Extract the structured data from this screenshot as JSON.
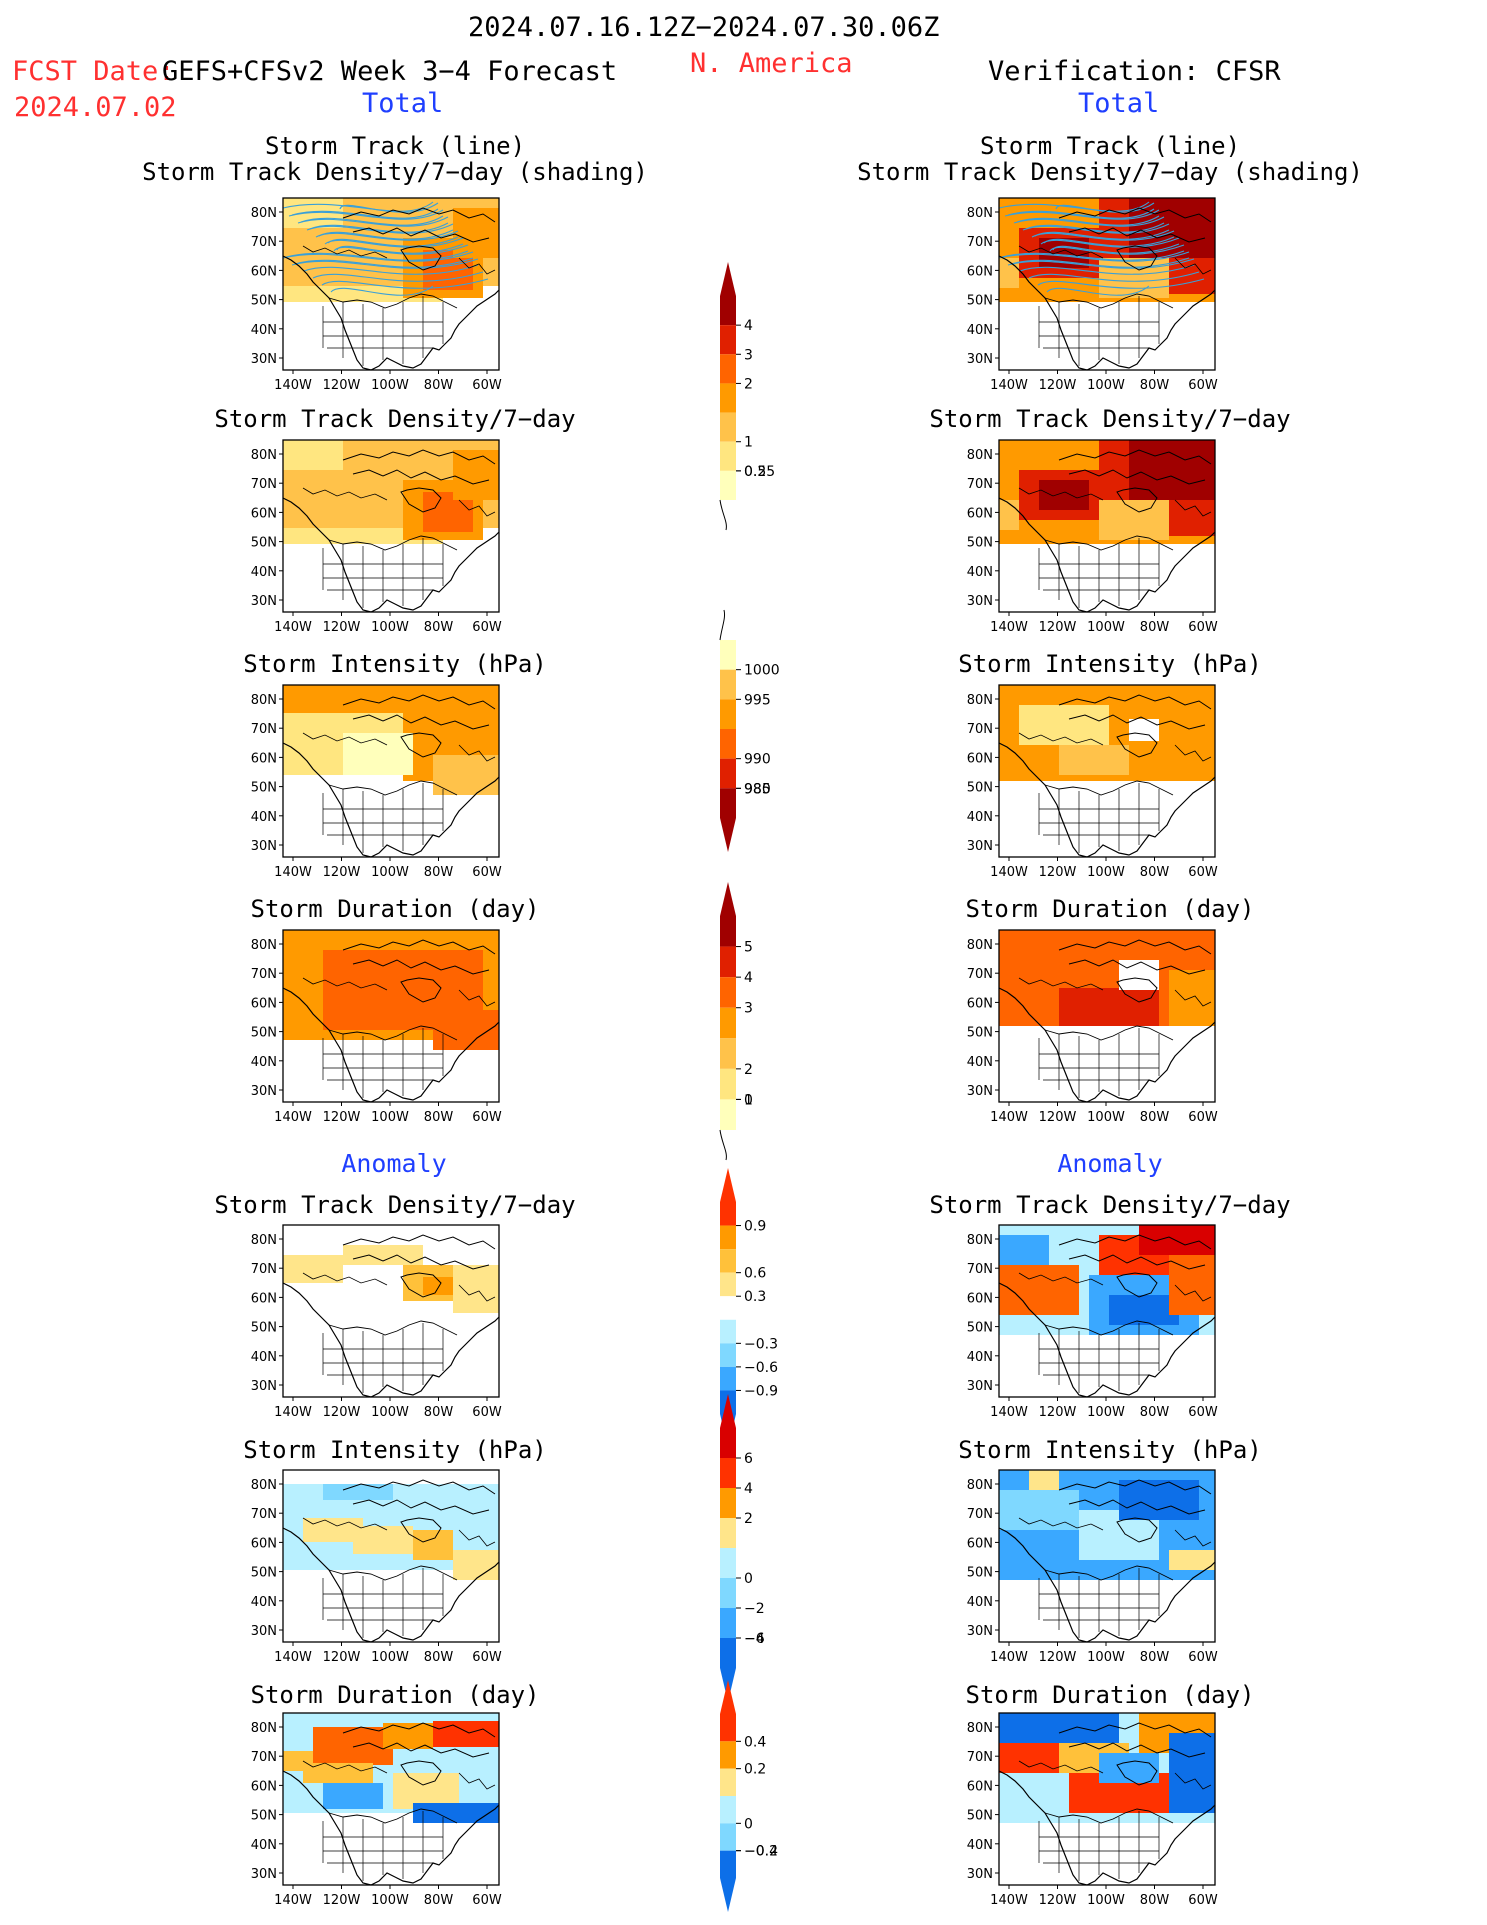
{
  "header": {
    "period": "2024.07.16.12Z−2024.07.30.06Z",
    "fcst_label": "FCST Date:",
    "model": "GEFS+CFSv2 Week 3−4 Forecast",
    "fcst_date": "2024.07.02",
    "region": "N. America",
    "verification": "Verification: CFSR",
    "left_total": "Total",
    "right_total": "Total",
    "left_anomaly": "Anomaly",
    "right_anomaly": "Anomaly"
  },
  "colors": {
    "header_red": "#ff3030",
    "label_blue": "#1f3fff",
    "track_line": "#3aa0d8",
    "white": "#ffffff",
    "pos": [
      "#ffe58a",
      "#ffc13a",
      "#ff9a00",
      "#ff6400",
      "#ff3200",
      "#d90000",
      "#a00000"
    ],
    "neg": [
      "#b8f0ff",
      "#7fd8ff",
      "#3aa8ff",
      "#0d6fe8",
      "#0040c0"
    ],
    "total": [
      "#ffffbb",
      "#ffe680",
      "#ffc24a",
      "#ff9a00",
      "#ff6400",
      "#e02000",
      "#a00000"
    ]
  },
  "axes": {
    "lon_ticks": [
      "140W",
      "120W",
      "100W",
      "80W",
      "60W"
    ],
    "lat_ticks": [
      "80N",
      "70N",
      "60N",
      "50N",
      "40N",
      "30N"
    ]
  },
  "panels": {
    "left": [
      {
        "title1": "Storm Track (line)",
        "title2": "Storm Track Density/7−day (shading)"
      },
      {
        "title1": "Storm Track Density/7−day"
      },
      {
        "title1": "Storm Intensity (hPa)"
      },
      {
        "title1": "Storm Duration (day)"
      },
      {
        "title1": "Storm Track Density/7−day"
      },
      {
        "title1": "Storm Intensity (hPa)"
      },
      {
        "title1": "Storm Duration (day)"
      }
    ],
    "right": [
      {
        "title1": "Storm Track (line)",
        "title2": "Storm Track Density/7−day (shading)"
      },
      {
        "title1": "Storm Track Density/7−day"
      },
      {
        "title1": "Storm Intensity (hPa)"
      },
      {
        "title1": "Storm Duration (day)"
      },
      {
        "title1": "Storm Track Density/7−day"
      },
      {
        "title1": "Storm Intensity (hPa)"
      },
      {
        "title1": "Storm Duration (day)"
      }
    ]
  },
  "colorbars": [
    {
      "labels": [
        "4",
        "3",
        "2",
        "1",
        "0.5",
        "0.25"
      ]
    },
    {
      "labels": [
        "1000",
        "995",
        "990",
        "985",
        "980"
      ]
    },
    {
      "labels": [
        "5",
        "4",
        "3",
        "2",
        "1",
        "0"
      ]
    },
    {
      "labels": [
        "0.9",
        "0.6",
        "0.3",
        "−0.3",
        "−0.6",
        "−0.9"
      ]
    },
    {
      "labels": [
        "6",
        "4",
        "2",
        "0",
        "−2",
        "−4",
        "−6"
      ]
    },
    {
      "labels": [
        "0.4",
        "0.2",
        "0",
        "−0.2",
        "−0.4"
      ]
    }
  ],
  "chart_data": [
    {
      "type": "heatmap",
      "title": "Storm Track (line) / Storm Track Density/7−day (shading)",
      "panel": "forecast total",
      "levels": [
        0.25,
        0.5,
        1,
        2,
        3,
        4
      ]
    },
    {
      "type": "heatmap",
      "title": "Storm Track Density/7−day",
      "panel": "forecast total",
      "levels": [
        0.25,
        0.5,
        1,
        2,
        3,
        4
      ]
    },
    {
      "type": "heatmap",
      "title": "Storm Intensity (hPa)",
      "panel": "forecast total",
      "levels": [
        1000,
        995,
        990,
        985,
        980
      ]
    },
    {
      "type": "heatmap",
      "title": "Storm Duration (day)",
      "panel": "forecast total",
      "levels": [
        0,
        1,
        2,
        3,
        4,
        5
      ]
    },
    {
      "type": "heatmap",
      "title": "Storm Track Density/7−day",
      "panel": "forecast anomaly",
      "levels": [
        -0.9,
        -0.6,
        -0.3,
        0.3,
        0.6,
        0.9
      ]
    },
    {
      "type": "heatmap",
      "title": "Storm Intensity (hPa)",
      "panel": "forecast anomaly",
      "levels": [
        -6,
        -4,
        -2,
        0,
        2,
        4,
        6
      ]
    },
    {
      "type": "heatmap",
      "title": "Storm Duration (day)",
      "panel": "forecast anomaly",
      "levels": [
        -0.4,
        -0.2,
        0,
        0.2,
        0.4
      ]
    },
    {
      "type": "heatmap",
      "title": "Storm Track (line) / Storm Track Density/7−day (shading)",
      "panel": "CFSR total",
      "levels": [
        0.25,
        0.5,
        1,
        2,
        3,
        4
      ]
    },
    {
      "type": "heatmap",
      "title": "Storm Track Density/7−day",
      "panel": "CFSR total",
      "levels": [
        0.25,
        0.5,
        1,
        2,
        3,
        4
      ]
    },
    {
      "type": "heatmap",
      "title": "Storm Intensity (hPa)",
      "panel": "CFSR total",
      "levels": [
        1000,
        995,
        990,
        985,
        980
      ]
    },
    {
      "type": "heatmap",
      "title": "Storm Duration (day)",
      "panel": "CFSR total",
      "levels": [
        0,
        1,
        2,
        3,
        4,
        5
      ]
    },
    {
      "type": "heatmap",
      "title": "Storm Track Density/7−day",
      "panel": "CFSR anomaly",
      "levels": [
        -0.9,
        -0.6,
        -0.3,
        0.3,
        0.6,
        0.9
      ]
    },
    {
      "type": "heatmap",
      "title": "Storm Intensity (hPa)",
      "panel": "CFSR anomaly",
      "levels": [
        -6,
        -4,
        -2,
        0,
        2,
        4,
        6
      ]
    },
    {
      "type": "heatmap",
      "title": "Storm Duration (day)",
      "panel": "CFSR anomaly",
      "levels": [
        -0.4,
        -0.2,
        0,
        0.2,
        0.4
      ]
    }
  ]
}
